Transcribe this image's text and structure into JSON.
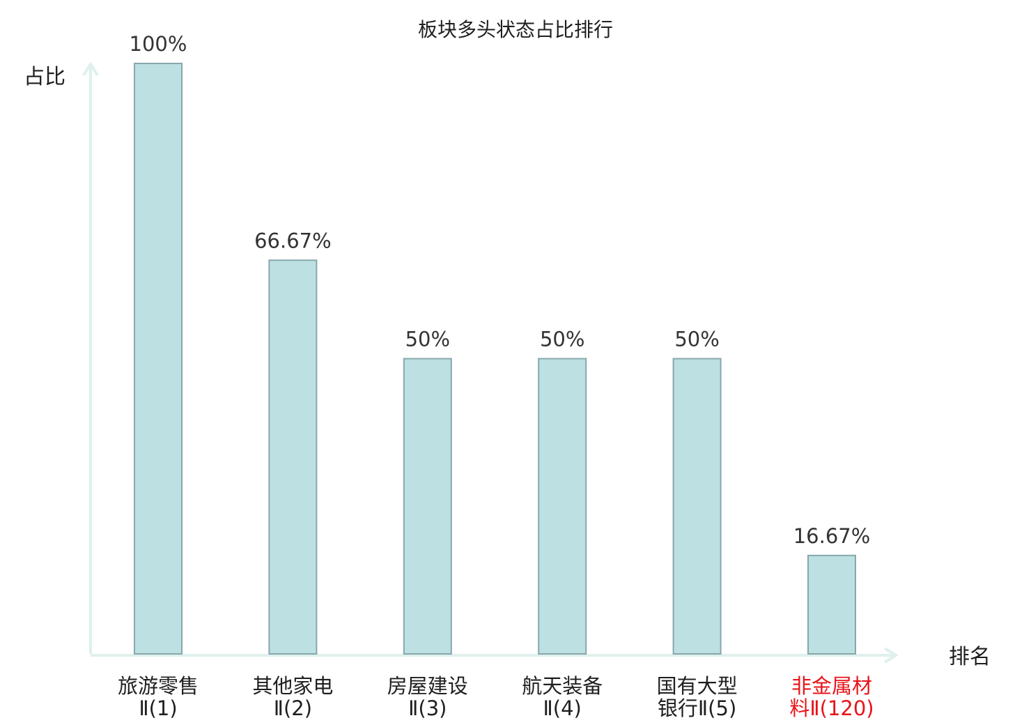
{
  "chart_data": {
    "type": "bar",
    "title": "板块多头状态占比排行",
    "xlabel": "排名",
    "ylabel": "占比",
    "categories": [
      {
        "line1": "旅游零售",
        "line2": "Ⅱ(1)",
        "highlight": false
      },
      {
        "line1": "其他家电",
        "line2": "Ⅱ(2)",
        "highlight": false
      },
      {
        "line1": "房屋建设",
        "line2": "Ⅱ(3)",
        "highlight": false
      },
      {
        "line1": "航天装备",
        "line2": "Ⅱ(4)",
        "highlight": false
      },
      {
        "line1": "国有大型",
        "line2": "银行Ⅱ(5)",
        "highlight": false
      },
      {
        "line1": "非金属材",
        "line2": "料Ⅱ(120)",
        "highlight": true
      }
    ],
    "values": [
      100,
      66.67,
      50,
      50,
      50,
      16.67
    ],
    "value_labels": [
      "100%",
      "66.67%",
      "50%",
      "50%",
      "50%",
      "16.67%"
    ],
    "ylim": [
      0,
      100
    ],
    "grid": false,
    "colors": {
      "bar_fill": "#bde0e3",
      "bar_stroke": "#87a7ab",
      "axis": "#dff0ed",
      "highlight_text": "#e8141a",
      "normal_text": "#1f1f1f"
    }
  }
}
